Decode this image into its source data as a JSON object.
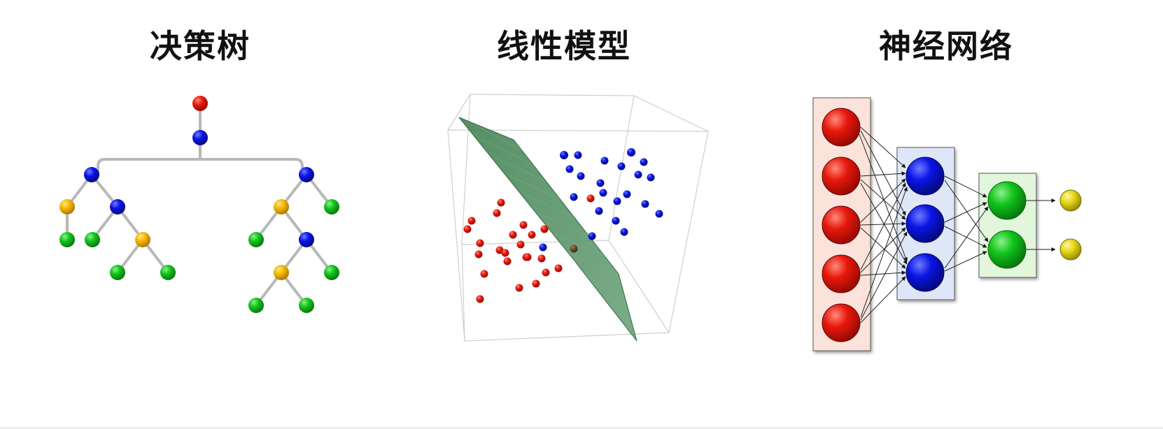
{
  "panels": {
    "decision_tree": {
      "title": "决策树",
      "node_colors": [
        "red",
        "blue",
        "gold",
        "green"
      ]
    },
    "linear_model": {
      "title": "线性模型",
      "classes": [
        "red",
        "blue"
      ],
      "separator": "hyperplane"
    },
    "neural_network": {
      "title": "神经网络",
      "layers": [
        {
          "name": "input",
          "neurons": 5,
          "color": "red"
        },
        {
          "name": "hidden",
          "neurons": 3,
          "color": "blue"
        },
        {
          "name": "hidden",
          "neurons": 2,
          "color": "green"
        },
        {
          "name": "output",
          "neurons": 2,
          "color": "yellow"
        }
      ]
    }
  },
  "colors": {
    "red": "#e8180c",
    "blue": "#0a14e6",
    "gold": "#f5b800",
    "green": "#12c41c",
    "yellow": "#e6d81a",
    "edge": "#b8b8b8",
    "plane": "#4e8c5c",
    "input_bg": "#fbe3dc",
    "hidden_bg": "#dfe6f7",
    "green_bg": "#e2f6dc"
  }
}
